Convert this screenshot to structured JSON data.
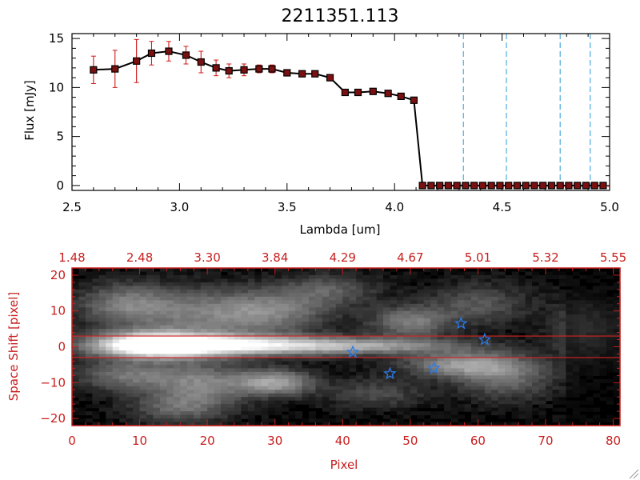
{
  "colors": {
    "axis_top": "#000000",
    "axis_bottom": "#c81e1e",
    "errorbar": "#d01818",
    "marker": "#000000",
    "marker_fill": "#7a1010",
    "vline": "#2a9ad8",
    "star": "#2a7ae8",
    "band": "#d82020"
  },
  "chart_data": [
    {
      "type": "line",
      "title": "2211351.113",
      "xlabel": "Lambda [um]",
      "ylabel": "Flux [mJy]",
      "xlim": [
        2.5,
        5.0
      ],
      "ylim": [
        -0.5,
        15.5
      ],
      "xticks": [
        2.5,
        3.0,
        3.5,
        4.0,
        4.5,
        5.0
      ],
      "xtick_labels": [
        "2.5",
        "3.0",
        "3.5",
        "4.0",
        "4.5",
        "5.0"
      ],
      "yticks": [
        0,
        5,
        10,
        15
      ],
      "ytick_labels": [
        "0",
        "5",
        "10",
        "15"
      ],
      "series": [
        {
          "name": "flux",
          "x": [
            2.6,
            2.7,
            2.8,
            2.87,
            2.95,
            3.03,
            3.1,
            3.17,
            3.23,
            3.3,
            3.37,
            3.43,
            3.5,
            3.57,
            3.63,
            3.7,
            3.77,
            3.83,
            3.9,
            3.97,
            4.03,
            4.09,
            4.13,
            4.17,
            4.21,
            4.25,
            4.29,
            4.33,
            4.37,
            4.41,
            4.45,
            4.49,
            4.53,
            4.57,
            4.61,
            4.65,
            4.69,
            4.73,
            4.77,
            4.81,
            4.85,
            4.89,
            4.93,
            4.97
          ],
          "y": [
            11.8,
            11.9,
            12.7,
            13.5,
            13.7,
            13.3,
            12.6,
            12.0,
            11.7,
            11.8,
            11.9,
            11.9,
            11.5,
            11.4,
            11.4,
            11.0,
            9.5,
            9.5,
            9.6,
            9.4,
            9.1,
            8.7,
            0.0,
            0.0,
            0.0,
            0.0,
            0.0,
            0.0,
            0.0,
            0.0,
            0.0,
            0.0,
            0.0,
            0.0,
            0.0,
            0.0,
            0.0,
            0.0,
            0.0,
            0.0,
            0.0,
            0.0,
            0.0,
            0.0
          ],
          "yerr": [
            1.4,
            1.9,
            2.2,
            1.2,
            1.0,
            0.9,
            1.1,
            0.8,
            0.7,
            0.6,
            0.4,
            0.4,
            0.3,
            0.3,
            0.3,
            0.3,
            0.3,
            0.3,
            0.3,
            0.3,
            0.3,
            0.3,
            0.0,
            0.0,
            0.0,
            0.0,
            0.0,
            0.0,
            0.0,
            0.0,
            0.0,
            0.0,
            0.0,
            0.0,
            0.0,
            0.0,
            0.0,
            0.0,
            0.0,
            0.0,
            0.0,
            0.0,
            0.0,
            0.0
          ]
        }
      ],
      "vlines": [
        4.32,
        4.52,
        4.77,
        4.91
      ]
    },
    {
      "type": "heatmap",
      "xlabel": "Pixel",
      "ylabel": "Space Shift [pixel]",
      "xlim": [
        0,
        81
      ],
      "ylim": [
        -22,
        22
      ],
      "xticks": [
        0,
        10,
        20,
        30,
        40,
        50,
        60,
        70,
        80
      ],
      "xtick_labels": [
        "0",
        "10",
        "20",
        "30",
        "40",
        "50",
        "60",
        "70",
        "80"
      ],
      "yticks": [
        -20,
        -10,
        0,
        10,
        20
      ],
      "ytick_labels": [
        "−20",
        "−10",
        "0",
        "10",
        "20"
      ],
      "top_axis_values": [
        0,
        10,
        20,
        30,
        40,
        50,
        60,
        70,
        80
      ],
      "top_tick_labels": [
        "1.48",
        "2.48",
        "3.30",
        "3.84",
        "4.29",
        "4.67",
        "5.01",
        "5.32",
        "5.55"
      ],
      "band_y": [
        3,
        -3
      ],
      "stars": [
        {
          "x": 57.5,
          "y": 6.5
        },
        {
          "x": 61.0,
          "y": 2.0
        },
        {
          "x": 41.5,
          "y": -1.5
        },
        {
          "x": 53.5,
          "y": -6.0
        },
        {
          "x": 47.0,
          "y": -7.5
        }
      ],
      "blobs": [
        {
          "x": 12,
          "y": 0.5,
          "sx": 6,
          "sy": 2.5,
          "a": 1.0
        },
        {
          "x": 20,
          "y": 0.5,
          "sx": 10,
          "sy": 2.0,
          "a": 0.6
        },
        {
          "x": 32,
          "y": 0.3,
          "sx": 12,
          "sy": 1.8,
          "a": 0.45
        },
        {
          "x": 46,
          "y": 0.2,
          "sx": 10,
          "sy": 1.5,
          "a": 0.3
        },
        {
          "x": 8,
          "y": 12,
          "sx": 5,
          "sy": 4,
          "a": 0.35
        },
        {
          "x": 20,
          "y": 9,
          "sx": 8,
          "sy": 5,
          "a": 0.35
        },
        {
          "x": 30,
          "y": 10,
          "sx": 6,
          "sy": 4,
          "a": 0.3
        },
        {
          "x": 38,
          "y": 16,
          "sx": 5,
          "sy": 3,
          "a": 0.25
        },
        {
          "x": 50,
          "y": 7,
          "sx": 4,
          "sy": 3,
          "a": 0.4
        },
        {
          "x": 60,
          "y": 12,
          "sx": 5,
          "sy": 4,
          "a": 0.25
        },
        {
          "x": 58,
          "y": -5,
          "sx": 6,
          "sy": 2.5,
          "a": 0.5
        },
        {
          "x": 64,
          "y": -9,
          "sx": 5,
          "sy": 4,
          "a": 0.3
        },
        {
          "x": 30,
          "y": -10,
          "sx": 4,
          "sy": 2.5,
          "a": 0.55
        },
        {
          "x": 19,
          "y": -10,
          "sx": 5,
          "sy": 4,
          "a": 0.4
        },
        {
          "x": 8,
          "y": -8,
          "sx": 5,
          "sy": 3,
          "a": 0.35
        },
        {
          "x": 16,
          "y": -17,
          "sx": 5,
          "sy": 3,
          "a": 0.3
        },
        {
          "x": 45,
          "y": -13,
          "sx": 5,
          "sy": 3,
          "a": 0.2
        },
        {
          "x": 76,
          "y": 5,
          "sx": 4,
          "sy": 6,
          "a": 0.2
        }
      ]
    }
  ]
}
